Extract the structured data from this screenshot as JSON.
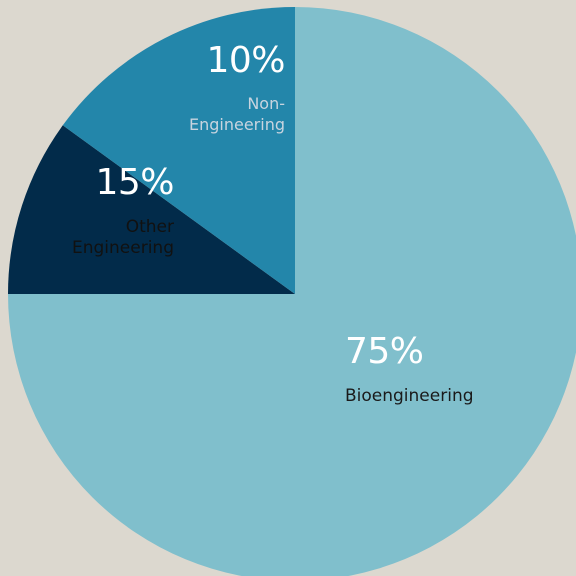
{
  "chart_data": {
    "type": "pie",
    "slices": [
      {
        "key": "bio",
        "label": "Bioengineering",
        "value": 75,
        "value_label": "75%",
        "color": "#80bfcc"
      },
      {
        "key": "non",
        "label_lines": [
          "Non-",
          "Engineering"
        ],
        "value": 10,
        "value_label": "10%",
        "color": "#022b4a"
      },
      {
        "key": "other",
        "label_lines": [
          "Other",
          "Engineering"
        ],
        "value": 15,
        "value_label": "15%",
        "color": "#2386aa"
      }
    ]
  }
}
